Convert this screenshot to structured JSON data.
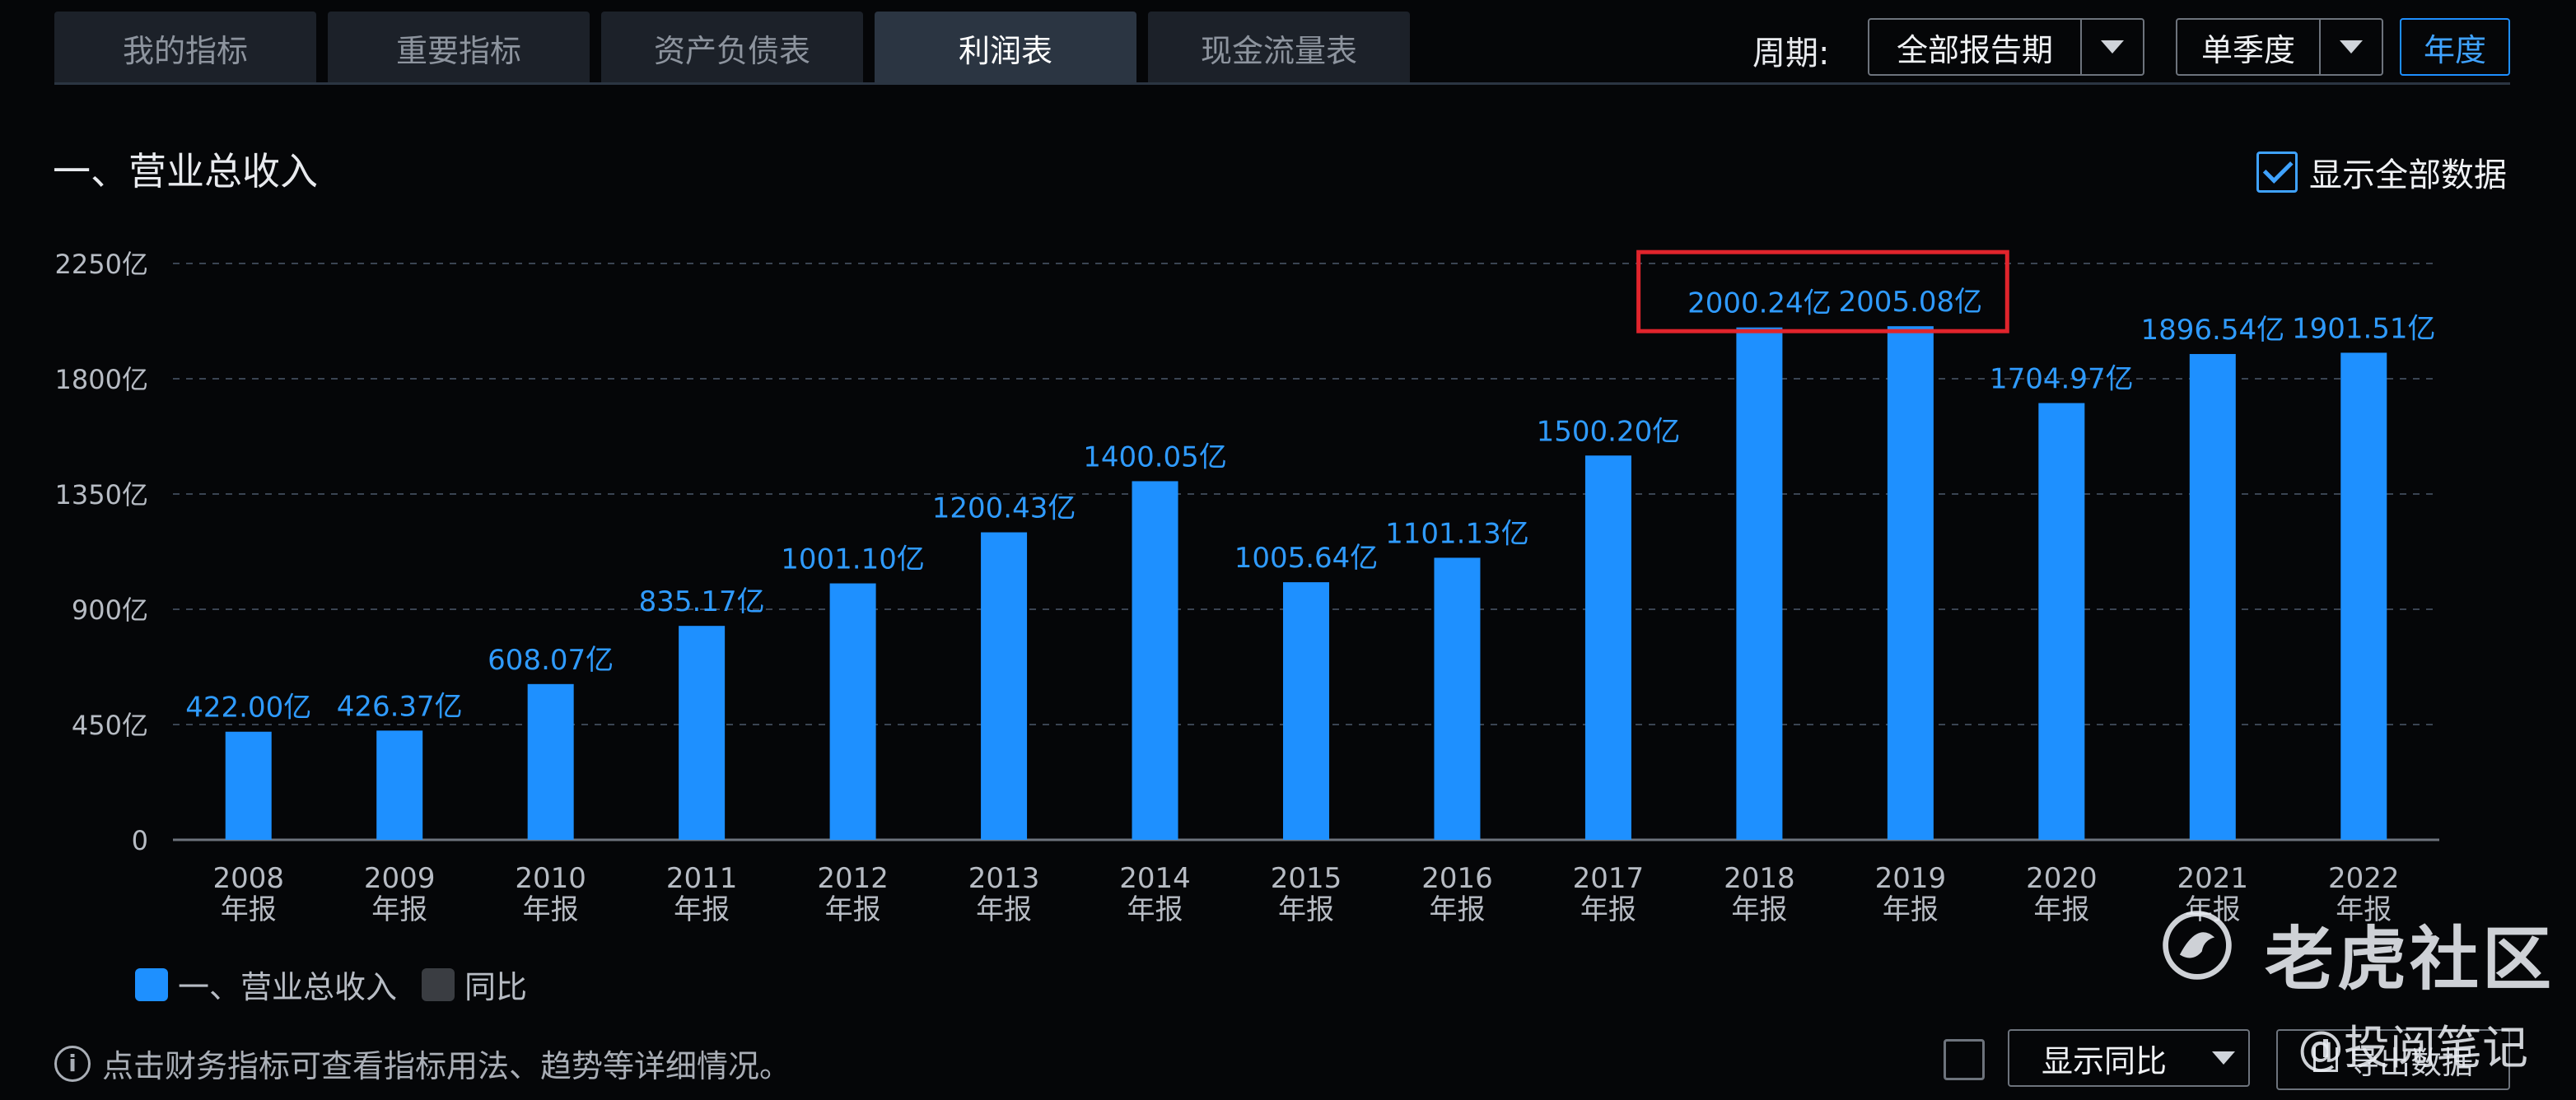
{
  "tabs": [
    {
      "label": "我的指标",
      "active": false
    },
    {
      "label": "重要指标",
      "active": false
    },
    {
      "label": "资产负债表",
      "active": false
    },
    {
      "label": "利润表",
      "active": true
    },
    {
      "label": "现金流量表",
      "active": false
    }
  ],
  "period": {
    "label": "周期:",
    "report_select": "全部报告期",
    "quarter_select": "单季度",
    "year_button": "年度"
  },
  "section_title": "一、营业总收入",
  "show_all": {
    "label": "显示全部数据",
    "checked": true
  },
  "legend": [
    {
      "label": "一、营业总收入",
      "color": "#1e90ff"
    },
    {
      "label": "同比",
      "color": "#3a3d42"
    }
  ],
  "footer": {
    "hint": "点击财务指标可查看指标用法、趋势等详细情况。",
    "yoy_select": "显示同比",
    "export_label": "导出数据"
  },
  "watermark": {
    "main": "老虎社区",
    "sub": "@投阅笔记"
  },
  "colors": {
    "bar": "#1e90ff",
    "label": "#2f9bff",
    "highlight_box": "#e0242c",
    "accent": "#1e8fff"
  },
  "chart_data": {
    "type": "bar",
    "categories": [
      "2008\n年报",
      "2009\n年报",
      "2010\n年报",
      "2011\n年报",
      "2012\n年报",
      "2013\n年报",
      "2014\n年报",
      "2015\n年报",
      "2016\n年报",
      "2017\n年报",
      "2018\n年报",
      "2019\n年报",
      "2020\n年报",
      "2021\n年报",
      "2022\n年报"
    ],
    "values": [
      422.0,
      426.37,
      608.07,
      835.17,
      1001.1,
      1200.43,
      1400.05,
      1005.64,
      1101.13,
      1500.2,
      2000.24,
      2005.08,
      1704.97,
      1896.54,
      1901.51
    ],
    "value_labels": [
      "422.00亿",
      "426.37亿",
      "608.07亿",
      "835.17亿",
      "1001.10亿",
      "1200.43亿",
      "1400.05亿",
      "1005.64亿",
      "1101.13亿",
      "1500.20亿",
      "2000.24亿",
      "2005.08亿",
      "1704.97亿",
      "1896.54亿",
      "1901.51亿"
    ],
    "yticks": [
      0,
      450,
      900,
      1350,
      1800,
      2250
    ],
    "ytick_labels": [
      "0",
      "450亿",
      "900亿",
      "1350亿",
      "1800亿",
      "2250亿"
    ],
    "ylim": [
      0,
      2250
    ],
    "grid": true,
    "highlight_categories": [
      "2018\n年报",
      "2019\n年报"
    ]
  }
}
